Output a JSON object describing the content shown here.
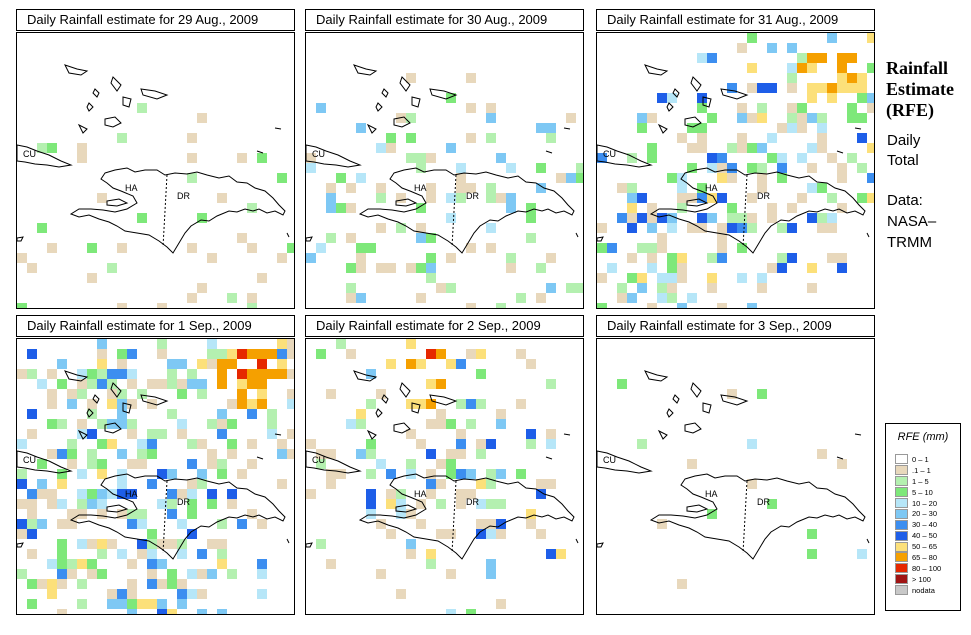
{
  "panels": [
    {
      "title": "Daily Rainfall estimate for  29 Aug., 2009",
      "intensity": 1
    },
    {
      "title": "Daily Rainfall estimate for  30 Aug., 2009",
      "intensity": 2
    },
    {
      "title": "Daily Rainfall estimate for  31 Aug., 2009",
      "intensity": 4
    },
    {
      "title": "Daily Rainfall estimate for  1 Sep., 2009",
      "intensity": 5
    },
    {
      "title": "Daily Rainfall estimate for  2 Sep., 2009",
      "intensity": 3
    },
    {
      "title": "Daily Rainfall estimate for  3 Sep., 2009",
      "intensity": 0
    }
  ],
  "map_labels": {
    "cuba": "CU",
    "haiti": "HA",
    "dominican_republic": "DR"
  },
  "side": {
    "title_lines": [
      "Rainfall",
      "Estimate",
      "(RFE)"
    ],
    "daily": "Daily",
    "total": "Total",
    "data_label": "Data:",
    "source_1": "NASA–",
    "source_2": "TRMM"
  },
  "legend": {
    "title": "RFE (mm)",
    "items": [
      {
        "label": "0 – 1",
        "color": "#ffffff"
      },
      {
        "label": ".1 – 1",
        "color": "#e8d8bc"
      },
      {
        "label": "1 – 5",
        "color": "#b4f0b0"
      },
      {
        "label": "5 – 10",
        "color": "#7ee87a"
      },
      {
        "label": "10 – 20",
        "color": "#b6e6f8"
      },
      {
        "label": "20 – 30",
        "color": "#7ec8f4"
      },
      {
        "label": "30 – 40",
        "color": "#3c8ef0"
      },
      {
        "label": "40 – 50",
        "color": "#1e5ee8"
      },
      {
        "label": "50 – 65",
        "color": "#fce07a"
      },
      {
        "label": "65 – 80",
        "color": "#f5a000"
      },
      {
        "label": "80 – 100",
        "color": "#e62800"
      },
      {
        "label": "> 100",
        "color": "#a01414"
      },
      {
        "label": "nodata",
        "color": "#c8c8c8"
      }
    ]
  }
}
